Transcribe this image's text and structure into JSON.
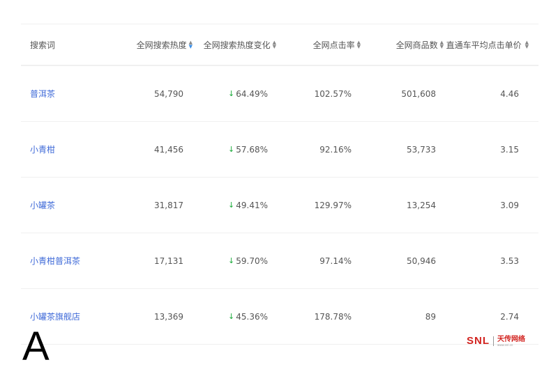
{
  "table": {
    "headers": [
      "搜索词",
      "全网搜索热度",
      "全网搜索热度变化",
      "全网点击率",
      "全网商品数",
      "直通车平均点击单价"
    ],
    "active_sort_column": 1,
    "rows": [
      {
        "term": "普洱茶",
        "heat": "54,790",
        "change": "64.49%",
        "ctr": "102.57%",
        "items": "501,608",
        "cpc": "4.46"
      },
      {
        "term": "小青柑",
        "heat": "41,456",
        "change": "57.68%",
        "ctr": "92.16%",
        "items": "53,733",
        "cpc": "3.15"
      },
      {
        "term": "小罐茶",
        "heat": "31,817",
        "change": "49.41%",
        "ctr": "129.97%",
        "items": "13,254",
        "cpc": "3.09"
      },
      {
        "term": "小青柑普洱茶",
        "heat": "17,131",
        "change": "59.70%",
        "ctr": "97.14%",
        "items": "50,946",
        "cpc": "3.53"
      },
      {
        "term": "小罐茶旗舰店",
        "heat": "13,369",
        "change": "45.36%",
        "ctr": "178.78%",
        "items": "89",
        "cpc": "2.74"
      }
    ]
  },
  "overlay_letter": "A",
  "logo": {
    "brand": "SNL",
    "name": "天传网络",
    "url": "www.snl.cn"
  },
  "colors": {
    "link": "#3f6ad8",
    "down": "#1aaa3a",
    "sort_active": "#3a8ee6",
    "logo": "#d2231f"
  }
}
